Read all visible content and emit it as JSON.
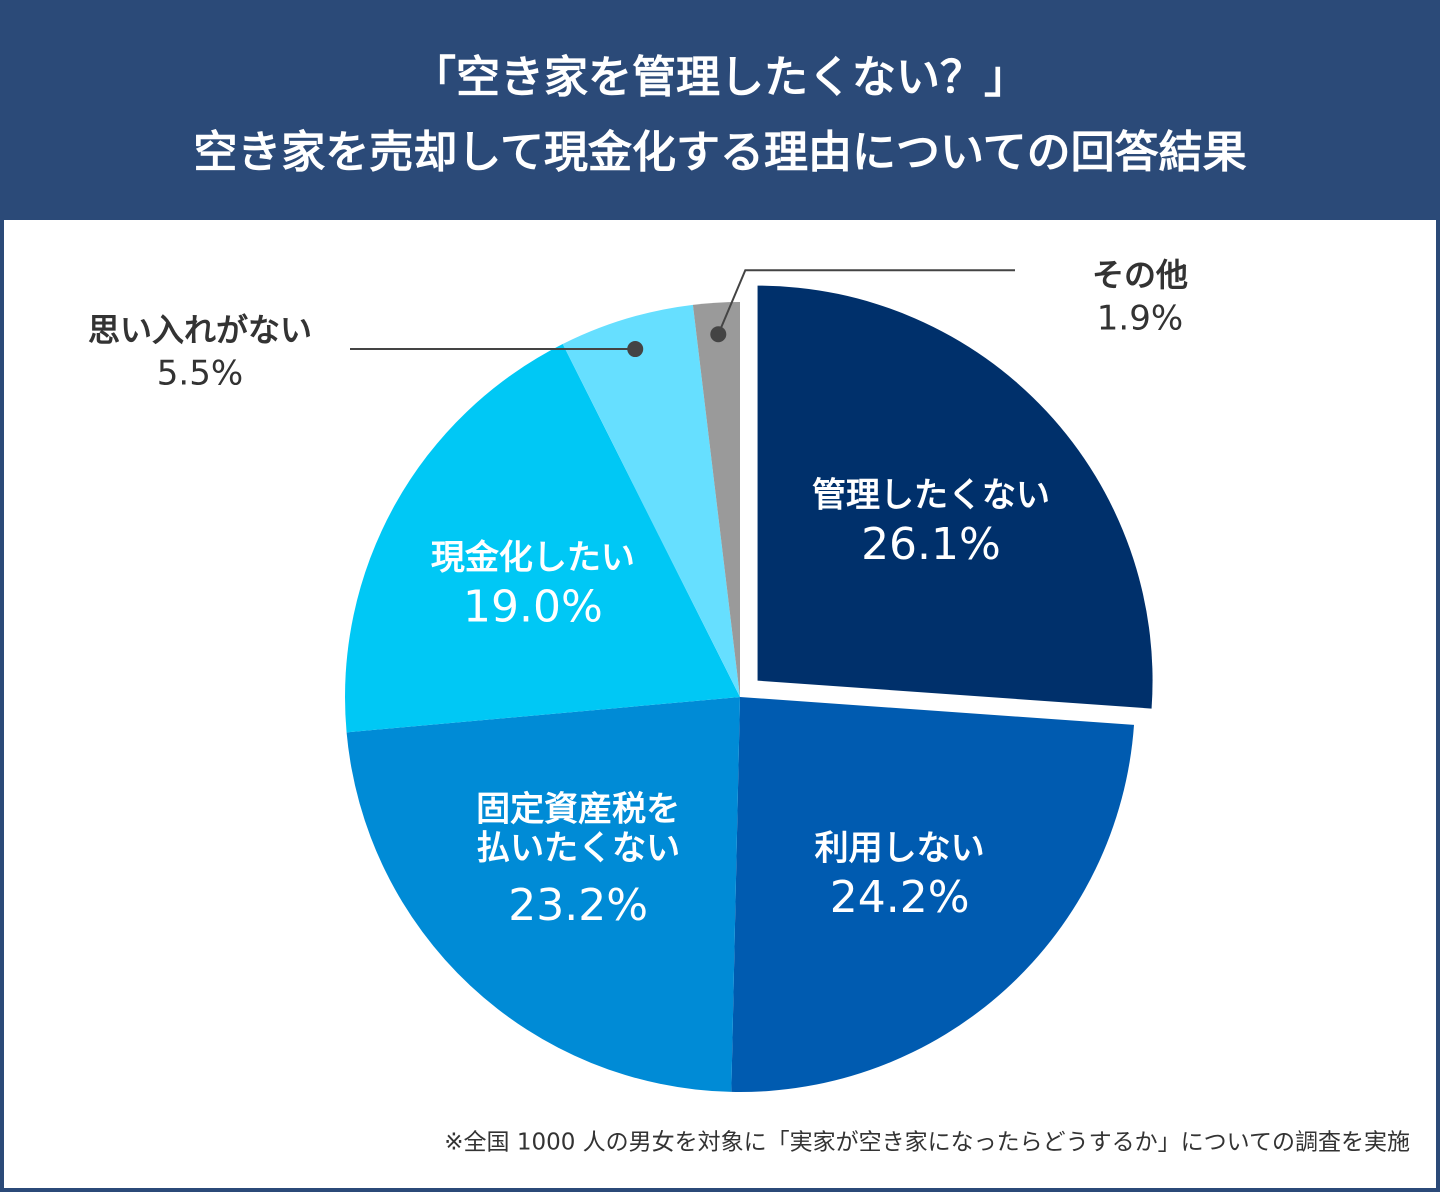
{
  "chart_data": {
    "type": "pie",
    "title": "「空き家を管理したくない？」",
    "subtitle": "空き家を売却して現金化する理由についての回答結果",
    "categories": [
      "管理したくない",
      "利用しない",
      "固定資産税を\n払いたくない",
      "現金化したい",
      "思い入れがない",
      "その他"
    ],
    "values": [
      26.1,
      24.2,
      23.2,
      19.0,
      5.5,
      1.9
    ],
    "value_labels": [
      "26.1%",
      "24.2%",
      "23.2%",
      "19.0%",
      "5.5%",
      "1.9%"
    ],
    "colors": [
      "#00306b",
      "#005bb0",
      "#008bd6",
      "#00c8f5",
      "#66dfff",
      "#9a9a9a"
    ],
    "explode": [
      0
    ],
    "note": "※全国 1000 人の男女を対象に「実家が空き家になったらどうするか」についての調査を実施"
  }
}
